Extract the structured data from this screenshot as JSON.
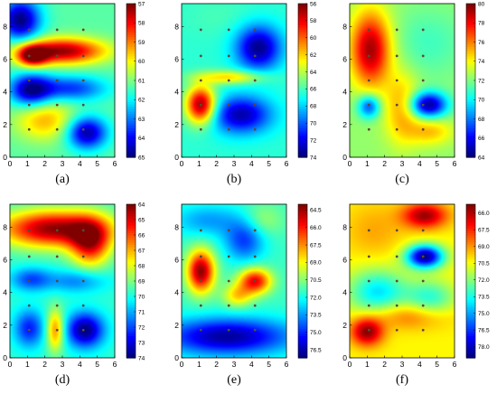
{
  "chart_data": [
    {
      "type": "heatmap",
      "panel_label": "(a)",
      "x_ticks": [
        0,
        1,
        2,
        3,
        4,
        5,
        6
      ],
      "y_ticks": [
        0,
        2,
        4,
        6,
        8
      ],
      "xlim": [
        0,
        6
      ],
      "ylim": [
        0,
        9.4
      ],
      "colorbar_ticks": [
        57,
        58,
        59,
        60,
        61,
        62,
        63,
        64,
        65
      ],
      "colorbar_range": [
        57,
        65
      ],
      "colorbar_reversed": true,
      "sensor_points": [
        [
          1.1,
          7.8
        ],
        [
          1.1,
          6.2
        ],
        [
          1.1,
          4.7
        ],
        [
          1.1,
          3.2
        ],
        [
          1.1,
          1.7
        ],
        [
          2.7,
          7.8
        ],
        [
          2.7,
          6.2
        ],
        [
          2.7,
          4.7
        ],
        [
          2.7,
          3.2
        ],
        [
          2.7,
          1.7
        ],
        [
          4.2,
          7.8
        ],
        [
          4.2,
          6.2
        ],
        [
          4.2,
          4.7
        ],
        [
          4.2,
          3.2
        ],
        [
          4.2,
          1.7
        ]
      ],
      "field": {
        "base": 61.3,
        "features": [
          {
            "x": 0.6,
            "y": 8.4,
            "sx": 0.8,
            "sy": 0.9,
            "v": 65
          },
          {
            "x": 3.0,
            "y": 6.5,
            "sx": 1.7,
            "sy": 0.55,
            "v": 57.2
          },
          {
            "x": 1.3,
            "y": 6.2,
            "sx": 0.6,
            "sy": 0.45,
            "v": 57.5
          },
          {
            "x": 1.2,
            "y": 4.1,
            "sx": 0.85,
            "sy": 0.7,
            "v": 64.8
          },
          {
            "x": 3.5,
            "y": 4.2,
            "sx": 1.4,
            "sy": 0.55,
            "v": 63.6
          },
          {
            "x": 4.4,
            "y": 1.5,
            "sx": 0.8,
            "sy": 0.7,
            "v": 64.8
          },
          {
            "x": 2.0,
            "y": 2.3,
            "sx": 1.2,
            "sy": 0.9,
            "v": 59.4
          }
        ]
      }
    },
    {
      "type": "heatmap",
      "panel_label": "(b)",
      "x_ticks": [
        0,
        1,
        2,
        3,
        4,
        5,
        6
      ],
      "y_ticks": [
        0,
        2,
        4,
        6,
        8
      ],
      "xlim": [
        0,
        6
      ],
      "ylim": [
        0,
        9.4
      ],
      "colorbar_ticks": [
        56,
        58,
        60,
        62,
        64,
        66,
        68,
        70,
        72,
        74
      ],
      "colorbar_range": [
        56,
        74
      ],
      "colorbar_reversed": true,
      "sensor_points": [
        [
          1.1,
          7.8
        ],
        [
          1.1,
          6.2
        ],
        [
          1.1,
          4.7
        ],
        [
          1.1,
          3.2
        ],
        [
          1.1,
          1.7
        ],
        [
          2.7,
          7.8
        ],
        [
          2.7,
          6.2
        ],
        [
          2.7,
          4.7
        ],
        [
          2.7,
          3.2
        ],
        [
          2.7,
          1.7
        ],
        [
          4.2,
          7.8
        ],
        [
          4.2,
          6.2
        ],
        [
          4.2,
          4.7
        ],
        [
          4.2,
          3.2
        ],
        [
          4.2,
          1.7
        ]
      ],
      "field": {
        "base": 66.5,
        "features": [
          {
            "x": 4.4,
            "y": 6.7,
            "sx": 0.9,
            "sy": 0.95,
            "v": 73.8
          },
          {
            "x": 1.1,
            "y": 3.2,
            "sx": 0.6,
            "sy": 0.8,
            "v": 56.2
          },
          {
            "x": 3.4,
            "y": 2.6,
            "sx": 1.2,
            "sy": 0.8,
            "v": 73.2
          },
          {
            "x": 2.8,
            "y": 4.9,
            "sx": 1.4,
            "sy": 0.3,
            "v": 62.0
          },
          {
            "x": 2.2,
            "y": 8.6,
            "sx": 1.5,
            "sy": 0.9,
            "v": 66.0
          }
        ]
      }
    },
    {
      "type": "heatmap",
      "panel_label": "(c)",
      "x_ticks": [
        0,
        1,
        2,
        3,
        4,
        5,
        6
      ],
      "y_ticks": [
        0,
        2,
        4,
        6,
        8
      ],
      "xlim": [
        0,
        6
      ],
      "ylim": [
        0,
        9.4
      ],
      "colorbar_ticks": [
        64,
        66,
        68,
        70,
        72,
        74,
        76,
        78,
        80
      ],
      "colorbar_range": [
        64,
        80
      ],
      "colorbar_reversed": false,
      "sensor_points": [
        [
          1.1,
          7.8
        ],
        [
          1.1,
          6.2
        ],
        [
          1.1,
          4.7
        ],
        [
          1.1,
          3.2
        ],
        [
          1.1,
          1.7
        ],
        [
          2.7,
          7.8
        ],
        [
          2.7,
          6.2
        ],
        [
          2.7,
          4.7
        ],
        [
          2.7,
          3.2
        ],
        [
          2.7,
          1.7
        ],
        [
          4.2,
          7.8
        ],
        [
          4.2,
          6.2
        ],
        [
          4.2,
          4.7
        ],
        [
          4.2,
          3.2
        ],
        [
          4.2,
          1.7
        ]
      ],
      "field": {
        "base": 72.3,
        "features": [
          {
            "x": 1.2,
            "y": 6.6,
            "sx": 0.8,
            "sy": 1.6,
            "v": 79.5
          },
          {
            "x": 4.5,
            "y": 3.2,
            "sx": 0.75,
            "sy": 0.55,
            "v": 64.3
          },
          {
            "x": 1.1,
            "y": 3.1,
            "sx": 0.45,
            "sy": 0.5,
            "v": 67.0
          },
          {
            "x": 4.5,
            "y": 7.0,
            "sx": 1.5,
            "sy": 1.5,
            "v": 71.0
          },
          {
            "x": 3.0,
            "y": 3.0,
            "sx": 0.7,
            "sy": 1.5,
            "v": 75.5
          },
          {
            "x": 4.6,
            "y": 1.6,
            "sx": 0.9,
            "sy": 0.6,
            "v": 75.0
          }
        ]
      }
    },
    {
      "type": "heatmap",
      "panel_label": "(d)",
      "x_ticks": [
        0,
        1,
        2,
        3,
        4,
        5,
        6
      ],
      "y_ticks": [
        0,
        2,
        4,
        6,
        8
      ],
      "xlim": [
        0,
        6
      ],
      "ylim": [
        0,
        9.4
      ],
      "colorbar_ticks": [
        64,
        65,
        66,
        67,
        68,
        69,
        70,
        71,
        72,
        73,
        74
      ],
      "colorbar_range": [
        64,
        74
      ],
      "colorbar_reversed": true,
      "sensor_points": [
        [
          1.1,
          7.8
        ],
        [
          1.1,
          6.2
        ],
        [
          1.1,
          4.7
        ],
        [
          1.1,
          3.2
        ],
        [
          1.1,
          1.7
        ],
        [
          2.7,
          7.8
        ],
        [
          2.7,
          6.2
        ],
        [
          2.7,
          4.7
        ],
        [
          2.7,
          3.2
        ],
        [
          2.7,
          1.7
        ],
        [
          4.2,
          7.8
        ],
        [
          4.2,
          6.2
        ],
        [
          4.2,
          4.7
        ],
        [
          4.2,
          3.2
        ],
        [
          4.2,
          1.7
        ]
      ],
      "field": {
        "base": 69.8,
        "features": [
          {
            "x": 2.5,
            "y": 7.9,
            "sx": 2.2,
            "sy": 0.8,
            "v": 64.2
          },
          {
            "x": 4.6,
            "y": 7.0,
            "sx": 0.8,
            "sy": 1.0,
            "v": 65.5
          },
          {
            "x": 1.2,
            "y": 4.8,
            "sx": 0.8,
            "sy": 0.5,
            "v": 72.0
          },
          {
            "x": 3.8,
            "y": 4.7,
            "sx": 1.2,
            "sy": 0.5,
            "v": 71.5
          },
          {
            "x": 1.1,
            "y": 1.8,
            "sx": 0.6,
            "sy": 0.8,
            "v": 72.5
          },
          {
            "x": 4.3,
            "y": 1.7,
            "sx": 0.75,
            "sy": 0.75,
            "v": 74.0
          },
          {
            "x": 2.6,
            "y": 1.7,
            "sx": 0.35,
            "sy": 0.9,
            "v": 66.5
          }
        ]
      }
    },
    {
      "type": "heatmap",
      "panel_label": "(e)",
      "x_ticks": [
        0,
        1,
        2,
        3,
        4,
        5,
        6
      ],
      "y_ticks": [
        0,
        2,
        4,
        6,
        8
      ],
      "xlim": [
        0,
        6
      ],
      "ylim": [
        0,
        9.4
      ],
      "colorbar_ticks": [
        64.5,
        66.0,
        67.5,
        69.0,
        70.5,
        72.0,
        73.5,
        75.0,
        76.5
      ],
      "colorbar_range": [
        64.0,
        77.2
      ],
      "colorbar_reversed": true,
      "sensor_points": [
        [
          1.1,
          7.8
        ],
        [
          1.1,
          6.2
        ],
        [
          1.1,
          4.7
        ],
        [
          1.1,
          3.2
        ],
        [
          1.1,
          1.7
        ],
        [
          2.7,
          7.8
        ],
        [
          2.7,
          6.2
        ],
        [
          2.7,
          4.7
        ],
        [
          2.7,
          3.2
        ],
        [
          2.7,
          1.7
        ],
        [
          4.2,
          7.8
        ],
        [
          4.2,
          6.2
        ],
        [
          4.2,
          4.7
        ],
        [
          4.2,
          3.2
        ],
        [
          4.2,
          1.7
        ]
      ],
      "field": {
        "base": 71.5,
        "features": [
          {
            "x": 1.1,
            "y": 5.3,
            "sx": 0.55,
            "sy": 0.9,
            "v": 64.2
          },
          {
            "x": 4.2,
            "y": 4.7,
            "sx": 0.65,
            "sy": 0.55,
            "v": 65.5
          },
          {
            "x": 3.2,
            "y": 3.8,
            "sx": 0.6,
            "sy": 0.5,
            "v": 68.5
          },
          {
            "x": 2.6,
            "y": 1.3,
            "sx": 2.6,
            "sy": 0.8,
            "v": 76.8
          },
          {
            "x": 3.6,
            "y": 7.2,
            "sx": 0.8,
            "sy": 0.9,
            "v": 74.8
          },
          {
            "x": 1.5,
            "y": 8.4,
            "sx": 1.4,
            "sy": 0.7,
            "v": 73.5
          },
          {
            "x": 4.6,
            "y": 8.4,
            "sx": 0.8,
            "sy": 0.7,
            "v": 70.0
          }
        ]
      }
    },
    {
      "type": "heatmap",
      "panel_label": "(f)",
      "x_ticks": [
        0,
        1,
        2,
        3,
        4,
        5,
        6
      ],
      "y_ticks": [
        0,
        2,
        4,
        6,
        8
      ],
      "xlim": [
        0,
        6
      ],
      "ylim": [
        0,
        9.4
      ],
      "colorbar_ticks": [
        66.0,
        67.5,
        69.0,
        70.5,
        72.0,
        73.5,
        75.0,
        76.5,
        78.0
      ],
      "colorbar_range": [
        65.2,
        79.0
      ],
      "colorbar_reversed": true,
      "sensor_points": [
        [
          1.1,
          7.8
        ],
        [
          1.1,
          6.2
        ],
        [
          1.1,
          4.7
        ],
        [
          1.1,
          3.2
        ],
        [
          1.1,
          1.7
        ],
        [
          2.7,
          7.8
        ],
        [
          2.7,
          6.2
        ],
        [
          2.7,
          4.7
        ],
        [
          2.7,
          3.2
        ],
        [
          2.7,
          1.7
        ],
        [
          4.2,
          7.8
        ],
        [
          4.2,
          6.2
        ],
        [
          4.2,
          4.7
        ],
        [
          4.2,
          3.2
        ],
        [
          4.2,
          1.7
        ]
      ],
      "field": {
        "base": 70.3,
        "features": [
          {
            "x": 4.3,
            "y": 6.2,
            "sx": 0.75,
            "sy": 0.5,
            "v": 78.8
          },
          {
            "x": 4.3,
            "y": 8.7,
            "sx": 0.9,
            "sy": 0.55,
            "v": 65.6
          },
          {
            "x": 1.0,
            "y": 1.6,
            "sx": 0.65,
            "sy": 0.6,
            "v": 65.3
          },
          {
            "x": 1.6,
            "y": 4.0,
            "sx": 1.2,
            "sy": 1.0,
            "v": 74.2
          },
          {
            "x": 4.6,
            "y": 3.6,
            "sx": 1.0,
            "sy": 0.8,
            "v": 73.4
          },
          {
            "x": 3.4,
            "y": 2.6,
            "sx": 1.6,
            "sy": 0.6,
            "v": 68.0
          },
          {
            "x": 1.4,
            "y": 7.8,
            "sx": 1.2,
            "sy": 1.2,
            "v": 69.2
          }
        ]
      }
    }
  ]
}
